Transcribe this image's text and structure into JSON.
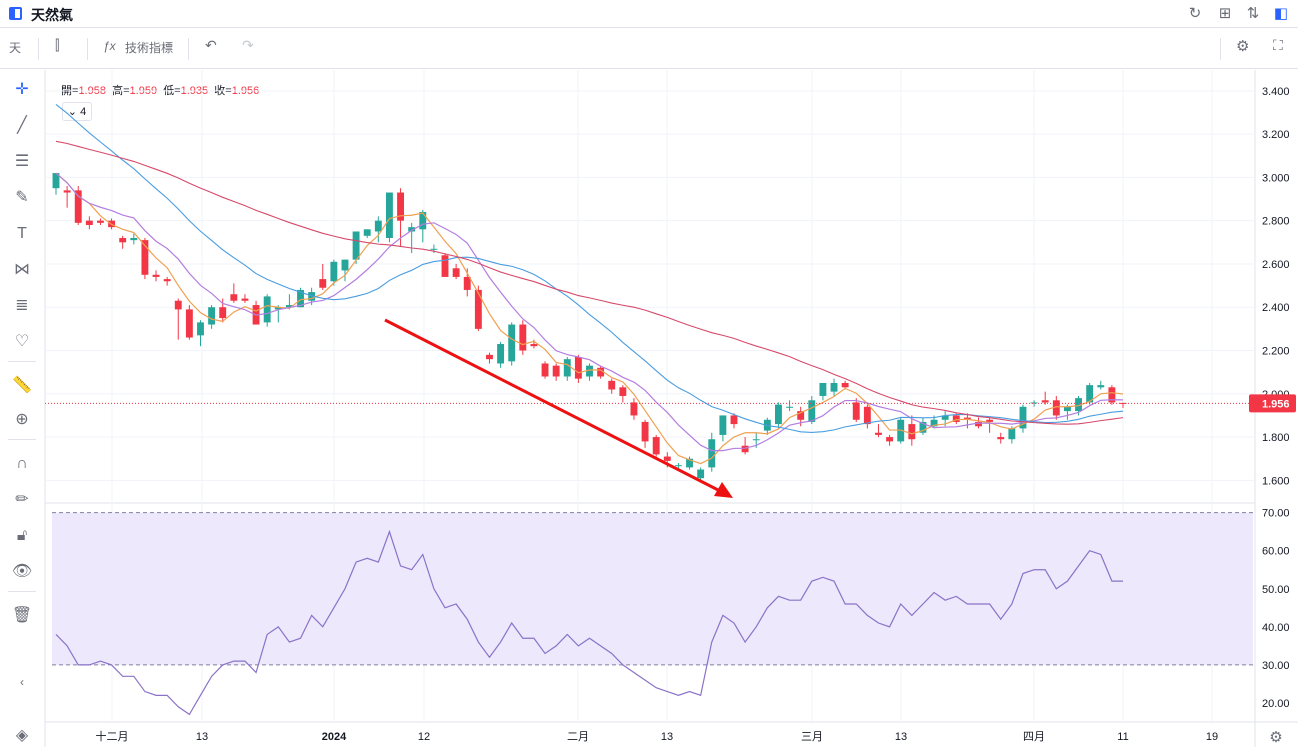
{
  "header": {
    "title": "天然氣"
  },
  "toolbar": {
    "interval": "天",
    "indicators_label": "技術指標"
  },
  "legend": {
    "open_label": "開=",
    "open": "1.958",
    "high_label": "高=",
    "high": "1.959",
    "low_label": "低=",
    "low": "1.935",
    "close_label": "收=",
    "close": "1.956",
    "indicator_count": "4"
  },
  "colors": {
    "up": "#26a69a",
    "down": "#f23645",
    "ma_fast": "#f0a050",
    "ma_mid": "#b47ee0",
    "ma_slow": "#4a9de0",
    "ma_long": "#d64a6b",
    "rsi": "#8a72c8",
    "rsi_band": "#ede8fb",
    "arrow": "#ee1111"
  },
  "price_axis": {
    "ticks": [
      "3.400",
      "3.200",
      "3.000",
      "2.800",
      "2.600",
      "2.400",
      "2.200",
      "2.000",
      "1.800",
      "1.600"
    ],
    "last_price": "1.956"
  },
  "rsi_axis": {
    "ticks": [
      "70.00",
      "60.00",
      "50.00",
      "40.00",
      "30.00",
      "20.00"
    ]
  },
  "time_axis": {
    "labels": [
      "十二月",
      "13",
      "2024",
      "12",
      "二月",
      "13",
      "三月",
      "13",
      "四月",
      "11",
      "19"
    ]
  },
  "chart_data": {
    "type": "candlestick",
    "y_range": [
      1.5,
      3.45
    ],
    "candles": [
      [
        2.95,
        3.02,
        2.92,
        3.02
      ],
      [
        2.94,
        2.96,
        2.86,
        2.93
      ],
      [
        2.94,
        2.96,
        2.78,
        2.79
      ],
      [
        2.8,
        2.82,
        2.76,
        2.78
      ],
      [
        2.8,
        2.81,
        2.78,
        2.79
      ],
      [
        2.8,
        2.81,
        2.76,
        2.77
      ],
      [
        2.72,
        2.73,
        2.67,
        2.7
      ],
      [
        2.71,
        2.74,
        2.69,
        2.72
      ],
      [
        2.71,
        2.72,
        2.53,
        2.55
      ],
      [
        2.55,
        2.57,
        2.52,
        2.54
      ],
      [
        2.53,
        2.54,
        2.5,
        2.52
      ],
      [
        2.43,
        2.44,
        2.25,
        2.39
      ],
      [
        2.39,
        2.41,
        2.25,
        2.26
      ],
      [
        2.27,
        2.34,
        2.22,
        2.33
      ],
      [
        2.32,
        2.41,
        2.3,
        2.4
      ],
      [
        2.4,
        2.44,
        2.33,
        2.35
      ],
      [
        2.46,
        2.51,
        2.42,
        2.43
      ],
      [
        2.44,
        2.46,
        2.42,
        2.43
      ],
      [
        2.41,
        2.43,
        2.32,
        2.32
      ],
      [
        2.33,
        2.46,
        2.31,
        2.45
      ],
      [
        2.39,
        2.41,
        2.33,
        2.4
      ],
      [
        2.4,
        2.46,
        2.39,
        2.41
      ],
      [
        2.4,
        2.49,
        2.4,
        2.48
      ],
      [
        2.43,
        2.49,
        2.41,
        2.47
      ],
      [
        2.53,
        2.6,
        2.48,
        2.49
      ],
      [
        2.52,
        2.62,
        2.5,
        2.61
      ],
      [
        2.57,
        2.62,
        2.52,
        2.62
      ],
      [
        2.62,
        2.75,
        2.6,
        2.75
      ],
      [
        2.73,
        2.76,
        2.72,
        2.76
      ],
      [
        2.75,
        2.82,
        2.7,
        2.8
      ],
      [
        2.72,
        2.93,
        2.7,
        2.93
      ],
      [
        2.93,
        2.95,
        2.68,
        2.8
      ],
      [
        2.75,
        2.79,
        2.65,
        2.77
      ],
      [
        2.76,
        2.85,
        2.7,
        2.84
      ],
      [
        2.67,
        2.69,
        2.65,
        2.67
      ],
      [
        2.64,
        2.65,
        2.55,
        2.54
      ],
      [
        2.58,
        2.6,
        2.53,
        2.54
      ],
      [
        2.54,
        2.58,
        2.45,
        2.48
      ],
      [
        2.48,
        2.5,
        2.29,
        2.3
      ],
      [
        2.18,
        2.19,
        2.14,
        2.16
      ],
      [
        2.14,
        2.24,
        2.12,
        2.23
      ],
      [
        2.15,
        2.33,
        2.13,
        2.32
      ],
      [
        2.32,
        2.34,
        2.18,
        2.2
      ],
      [
        2.23,
        2.25,
        2.21,
        2.22
      ],
      [
        2.14,
        2.15,
        2.07,
        2.08
      ],
      [
        2.13,
        2.14,
        2.06,
        2.08
      ],
      [
        2.08,
        2.17,
        2.06,
        2.16
      ],
      [
        2.17,
        2.18,
        2.05,
        2.07
      ],
      [
        2.08,
        2.14,
        2.06,
        2.13
      ],
      [
        2.12,
        2.13,
        2.07,
        2.08
      ],
      [
        2.06,
        2.07,
        2.0,
        2.02
      ],
      [
        2.03,
        2.04,
        1.96,
        1.99
      ],
      [
        1.96,
        1.98,
        1.88,
        1.9
      ],
      [
        1.87,
        1.88,
        1.75,
        1.78
      ],
      [
        1.8,
        1.81,
        1.71,
        1.72
      ],
      [
        1.71,
        1.73,
        1.66,
        1.69
      ],
      [
        1.67,
        1.68,
        1.65,
        1.67
      ],
      [
        1.66,
        1.71,
        1.65,
        1.7
      ],
      [
        1.61,
        1.66,
        1.6,
        1.65
      ],
      [
        1.66,
        1.82,
        1.64,
        1.79
      ],
      [
        1.81,
        1.9,
        1.78,
        1.9
      ],
      [
        1.9,
        1.91,
        1.84,
        1.86
      ],
      [
        1.76,
        1.8,
        1.72,
        1.73
      ],
      [
        1.79,
        1.82,
        1.75,
        1.79
      ],
      [
        1.83,
        1.89,
        1.81,
        1.88
      ],
      [
        1.86,
        1.96,
        1.84,
        1.95
      ],
      [
        1.94,
        1.97,
        1.92,
        1.94
      ],
      [
        1.92,
        1.94,
        1.85,
        1.88
      ],
      [
        1.87,
        1.99,
        1.86,
        1.97
      ],
      [
        1.99,
        2.05,
        1.97,
        2.05
      ],
      [
        2.01,
        2.07,
        1.99,
        2.05
      ],
      [
        2.05,
        2.06,
        2.02,
        2.03
      ],
      [
        1.96,
        1.98,
        1.87,
        1.88
      ],
      [
        1.94,
        1.95,
        1.84,
        1.86
      ],
      [
        1.82,
        1.86,
        1.8,
        1.81
      ],
      [
        1.8,
        1.81,
        1.76,
        1.78
      ],
      [
        1.78,
        1.89,
        1.77,
        1.88
      ],
      [
        1.86,
        1.9,
        1.76,
        1.79
      ],
      [
        1.82,
        1.89,
        1.81,
        1.87
      ],
      [
        1.85,
        1.9,
        1.84,
        1.88
      ],
      [
        1.88,
        1.92,
        1.85,
        1.9
      ],
      [
        1.9,
        1.91,
        1.86,
        1.87
      ],
      [
        1.89,
        1.91,
        1.84,
        1.88
      ],
      [
        1.87,
        1.89,
        1.84,
        1.85
      ],
      [
        1.88,
        1.89,
        1.82,
        1.87
      ],
      [
        1.8,
        1.82,
        1.77,
        1.79
      ],
      [
        1.79,
        1.85,
        1.77,
        1.84
      ],
      [
        1.84,
        1.95,
        1.82,
        1.94
      ],
      [
        1.96,
        1.97,
        1.94,
        1.96
      ],
      [
        1.97,
        2.01,
        1.95,
        1.96
      ],
      [
        1.97,
        1.99,
        1.88,
        1.9
      ],
      [
        1.92,
        1.95,
        1.88,
        1.94
      ],
      [
        1.92,
        1.99,
        1.9,
        1.98
      ],
      [
        1.96,
        2.05,
        1.95,
        2.04
      ],
      [
        2.03,
        2.06,
        2.02,
        2.04
      ],
      [
        2.03,
        2.04,
        1.95,
        1.96
      ],
      [
        1.958,
        1.959,
        1.935,
        1.956
      ]
    ],
    "rsi_range": [
      15,
      72
    ],
    "rsi": [
      38,
      35,
      30,
      30,
      31,
      30,
      27,
      27,
      23,
      22,
      22,
      19,
      17,
      22,
      27,
      30,
      31,
      31,
      28,
      38,
      40,
      36,
      37,
      43,
      40,
      45,
      50,
      57,
      58,
      57,
      65,
      56,
      55,
      59,
      50,
      45,
      46,
      42,
      36,
      32,
      36,
      41,
      37,
      37,
      33,
      35,
      38,
      35,
      37,
      35,
      33,
      30,
      28,
      26,
      24,
      23,
      22,
      23,
      22,
      36,
      43,
      41,
      36,
      40,
      45,
      48,
      47,
      47,
      52,
      53,
      52,
      46,
      46,
      43,
      41,
      40,
      46,
      43,
      46,
      49,
      47,
      48,
      46,
      46,
      46,
      42,
      46,
      54,
      55,
      55,
      50,
      52,
      56,
      60,
      59,
      52,
      52
    ]
  }
}
